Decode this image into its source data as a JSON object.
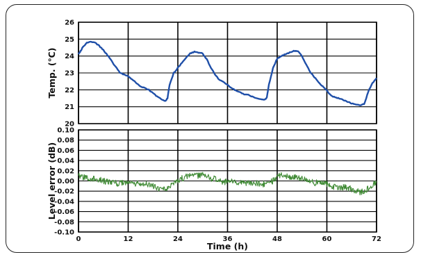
{
  "chart_data": [
    {
      "type": "line",
      "ylabel": "Temp. (℃)",
      "xlim": [
        0,
        72
      ],
      "ylim": [
        20,
        26
      ],
      "yticks": [
        20,
        21,
        22,
        23,
        24,
        25,
        26
      ],
      "xticks": [
        0,
        12,
        24,
        36,
        48,
        60,
        72
      ],
      "grid": true,
      "line_color": "#1f4fa8",
      "series": [
        {
          "x": [
            0,
            0.5,
            1,
            2,
            3,
            4,
            5,
            6,
            7,
            8,
            9,
            10,
            11,
            12,
            13,
            14,
            15,
            16,
            17,
            18,
            19,
            20,
            21,
            21.5,
            22,
            23,
            24,
            25,
            26,
            27,
            28,
            29,
            30,
            31,
            32,
            33,
            34,
            35,
            36,
            37,
            38,
            39,
            40,
            41,
            42,
            43,
            44,
            45,
            45.5,
            46,
            47,
            48,
            49,
            50,
            51,
            52,
            53,
            54,
            55,
            56,
            57,
            58,
            59,
            60,
            61,
            62,
            63,
            64,
            65,
            66,
            67,
            68,
            69,
            69.5,
            70,
            71,
            72
          ],
          "values": [
            24.1,
            24.3,
            24.5,
            24.8,
            24.85,
            24.8,
            24.6,
            24.35,
            24.05,
            23.7,
            23.35,
            23.0,
            22.9,
            22.8,
            22.6,
            22.4,
            22.2,
            22.1,
            22.0,
            21.8,
            21.6,
            21.45,
            21.35,
            21.5,
            22.3,
            23.0,
            23.3,
            23.6,
            23.9,
            24.15,
            24.25,
            24.2,
            24.15,
            23.8,
            23.3,
            22.9,
            22.6,
            22.45,
            22.3,
            22.1,
            21.95,
            21.85,
            21.75,
            21.7,
            21.6,
            21.5,
            21.45,
            21.4,
            21.55,
            22.3,
            23.3,
            23.85,
            24.0,
            24.1,
            24.2,
            24.3,
            24.3,
            24.0,
            23.5,
            23.05,
            22.75,
            22.45,
            22.2,
            21.95,
            21.65,
            21.55,
            21.5,
            21.4,
            21.3,
            21.2,
            21.15,
            21.1,
            21.15,
            21.5,
            21.9,
            22.4,
            22.7
          ]
        }
      ]
    },
    {
      "type": "line",
      "xlabel": "Time (h)",
      "ylabel": "Level error (dB)",
      "xlim": [
        0,
        72
      ],
      "ylim": [
        -0.1,
        0.1
      ],
      "yticks": [
        -0.1,
        -0.08,
        -0.06,
        -0.04,
        -0.02,
        0.0,
        0.02,
        0.04,
        0.06,
        0.08,
        0.1
      ],
      "ytick_labels": [
        "-0.10",
        "-0.08",
        "-0.06",
        "-0.04",
        "-0.02",
        "0.00",
        "0.02",
        "0.04",
        "0.06",
        "0.08",
        "0.10"
      ],
      "xticks": [
        0,
        12,
        24,
        36,
        48,
        60,
        72
      ],
      "xtick_labels": [
        "0",
        "12",
        "24",
        "36",
        "48",
        "60",
        "72"
      ],
      "grid": true,
      "line_color": "#3f8a34",
      "series": [
        {
          "x": [
            0,
            1,
            2,
            3,
            4,
            5,
            6,
            7,
            8,
            9,
            10,
            11,
            12,
            13,
            14,
            15,
            16,
            17,
            18,
            19,
            20,
            21,
            22,
            23,
            24,
            25,
            26,
            27,
            28,
            29,
            30,
            31,
            32,
            33,
            34,
            35,
            36,
            37,
            38,
            39,
            40,
            41,
            42,
            43,
            44,
            45,
            46,
            47,
            48,
            49,
            50,
            51,
            52,
            53,
            54,
            55,
            56,
            57,
            58,
            59,
            60,
            61,
            62,
            63,
            64,
            65,
            66,
            67,
            68,
            69,
            70,
            71,
            72
          ],
          "values": [
            0.01,
            0.008,
            0.006,
            0.005,
            0.004,
            0.003,
            0.0,
            -0.002,
            -0.003,
            -0.004,
            -0.005,
            -0.004,
            -0.005,
            -0.004,
            -0.005,
            -0.006,
            -0.006,
            -0.008,
            -0.01,
            -0.015,
            -0.018,
            -0.015,
            -0.01,
            -0.005,
            0.0,
            0.005,
            0.008,
            0.01,
            0.012,
            0.01,
            0.012,
            0.008,
            0.005,
            0.004,
            0.0,
            -0.002,
            -0.002,
            -0.002,
            -0.003,
            -0.004,
            -0.005,
            -0.004,
            -0.003,
            -0.004,
            -0.008,
            -0.005,
            -0.003,
            0.0,
            0.008,
            0.012,
            0.01,
            0.008,
            0.007,
            0.006,
            0.004,
            0.002,
            0.0,
            -0.004,
            -0.002,
            -0.004,
            -0.006,
            -0.01,
            -0.012,
            -0.014,
            -0.012,
            -0.014,
            -0.016,
            -0.02,
            -0.022,
            -0.02,
            -0.015,
            -0.008,
            0.0
          ]
        }
      ]
    }
  ]
}
